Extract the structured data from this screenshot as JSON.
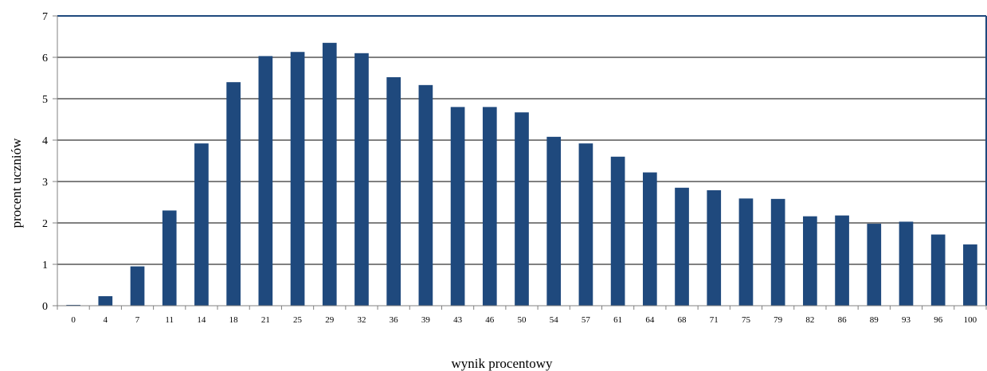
{
  "chart_data": {
    "type": "bar",
    "title": "",
    "xlabel": "wynik procentowy",
    "ylabel": "procent uczniów",
    "ylim": [
      0,
      7
    ],
    "yticks": [
      0,
      1,
      2,
      3,
      4,
      5,
      6,
      7
    ],
    "grid": true,
    "legend": "none",
    "categories": [
      "0",
      "4",
      "7",
      "11",
      "14",
      "18",
      "21",
      "25",
      "29",
      "32",
      "36",
      "39",
      "43",
      "46",
      "50",
      "54",
      "57",
      "61",
      "64",
      "68",
      "71",
      "75",
      "79",
      "82",
      "86",
      "89",
      "93",
      "96",
      "100"
    ],
    "values": [
      0.02,
      0.23,
      0.95,
      2.3,
      3.92,
      5.4,
      6.03,
      6.13,
      6.35,
      6.1,
      5.52,
      5.33,
      4.8,
      4.8,
      4.67,
      4.08,
      3.92,
      3.6,
      3.22,
      2.85,
      2.79,
      2.59,
      2.58,
      2.16,
      2.18,
      1.98,
      2.03,
      1.72,
      1.48
    ],
    "colors": {
      "bar": "#1f497d",
      "grid": "#000000",
      "frame": "#1f497d",
      "axis": "#808080"
    }
  }
}
